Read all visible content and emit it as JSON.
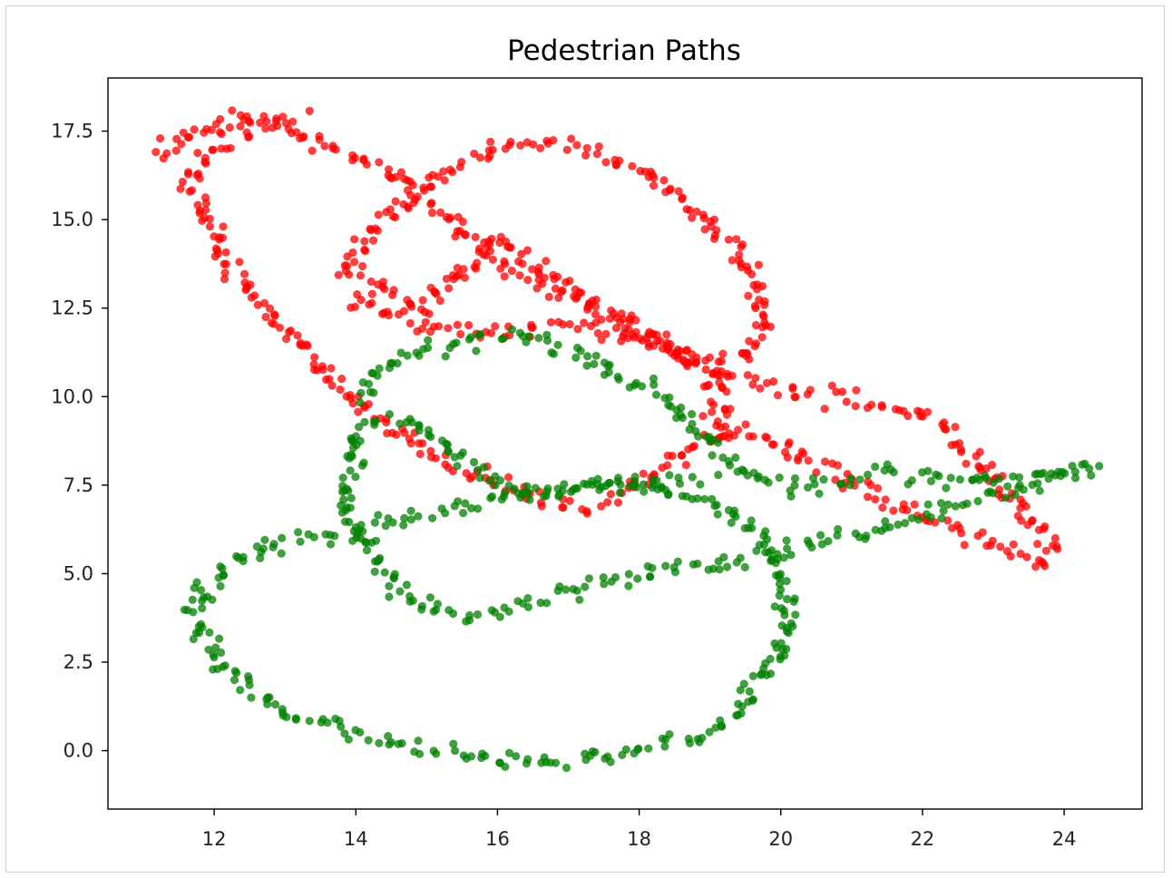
{
  "chart_data": {
    "type": "scatter",
    "title": "Pedestrian Paths",
    "xlabel": "",
    "ylabel": "",
    "xlim": [
      10.5,
      25.1
    ],
    "ylim": [
      -1.65,
      19.0
    ],
    "xticks": [
      12,
      14,
      16,
      18,
      20,
      22,
      24
    ],
    "yticks": [
      0.0,
      2.5,
      5.0,
      7.5,
      10.0,
      12.5,
      15.0,
      17.5
    ],
    "xtick_labels": [
      "12",
      "14",
      "16",
      "18",
      "20",
      "22",
      "24"
    ],
    "ytick_labels": [
      "0.0",
      "2.5",
      "5.0",
      "7.5",
      "10.0",
      "12.5",
      "15.0",
      "17.5"
    ],
    "grid": false,
    "series": [
      {
        "color": "#ff0000",
        "path": [
          [
            11.2,
            16.8
          ],
          [
            11.7,
            17.4
          ],
          [
            12.3,
            17.9
          ],
          [
            12.9,
            17.6
          ],
          [
            13.5,
            17.2
          ],
          [
            14.1,
            16.7
          ],
          [
            14.7,
            16.1
          ],
          [
            15.0,
            15.5
          ],
          [
            15.4,
            14.9
          ],
          [
            15.8,
            14.2
          ],
          [
            16.2,
            13.6
          ],
          [
            16.6,
            13.2
          ],
          [
            17.0,
            12.8
          ],
          [
            17.5,
            12.3
          ],
          [
            18.0,
            11.8
          ],
          [
            18.5,
            11.2
          ],
          [
            19.0,
            10.8
          ],
          [
            19.5,
            10.5
          ],
          [
            20.0,
            10.2
          ],
          [
            20.5,
            10.0
          ],
          [
            21.0,
            9.9
          ],
          [
            21.5,
            9.7
          ],
          [
            22.0,
            9.4
          ],
          [
            22.4,
            8.9
          ],
          [
            22.8,
            8.2
          ],
          [
            23.2,
            7.4
          ],
          [
            23.5,
            6.6
          ],
          [
            23.8,
            5.8
          ],
          [
            23.7,
            5.3
          ],
          [
            23.3,
            5.6
          ],
          [
            22.8,
            6.0
          ],
          [
            22.3,
            6.4
          ],
          [
            21.8,
            6.8
          ],
          [
            21.3,
            7.3
          ],
          [
            20.8,
            7.8
          ],
          [
            20.3,
            8.3
          ],
          [
            19.8,
            8.8
          ],
          [
            19.3,
            9.1
          ],
          [
            18.8,
            8.6
          ],
          [
            18.3,
            7.9
          ],
          [
            17.8,
            7.2
          ],
          [
            17.2,
            6.9
          ],
          [
            16.6,
            7.1
          ],
          [
            16.0,
            7.5
          ],
          [
            15.5,
            7.9
          ],
          [
            15.0,
            8.4
          ],
          [
            14.6,
            9.0
          ],
          [
            14.2,
            9.7
          ],
          [
            13.9,
            10.2
          ],
          [
            13.5,
            10.8
          ],
          [
            13.2,
            11.5
          ],
          [
            12.9,
            12.1
          ],
          [
            12.6,
            12.8
          ],
          [
            12.3,
            13.6
          ],
          [
            12.0,
            14.5
          ],
          [
            11.8,
            15.5
          ],
          [
            11.6,
            16.2
          ],
          [
            11.9,
            16.9
          ],
          [
            12.4,
            17.5
          ],
          [
            13.3,
            18.0
          ]
        ]
      },
      {
        "color": "#ff0000",
        "path": [
          [
            13.9,
            12.8
          ],
          [
            14.3,
            12.4
          ],
          [
            14.9,
            12.0
          ],
          [
            15.6,
            11.8
          ],
          [
            16.3,
            11.9
          ],
          [
            17.0,
            12.0
          ],
          [
            17.6,
            11.8
          ],
          [
            18.1,
            11.5
          ],
          [
            18.5,
            11.2
          ],
          [
            18.9,
            11.1
          ],
          [
            19.2,
            11.0
          ],
          [
            19.6,
            11.3
          ],
          [
            19.8,
            12.0
          ],
          [
            19.7,
            12.8
          ],
          [
            19.5,
            13.6
          ],
          [
            19.2,
            14.4
          ],
          [
            18.8,
            15.2
          ],
          [
            18.4,
            15.9
          ],
          [
            17.9,
            16.5
          ],
          [
            17.3,
            16.9
          ],
          [
            16.6,
            17.2
          ],
          [
            16.0,
            17.1
          ],
          [
            15.6,
            16.7
          ],
          [
            15.2,
            16.2
          ],
          [
            14.8,
            15.7
          ],
          [
            14.4,
            15.0
          ],
          [
            14.0,
            14.2
          ],
          [
            13.8,
            13.6
          ],
          [
            14.2,
            13.3
          ],
          [
            14.6,
            12.8
          ],
          [
            15.0,
            12.5
          ],
          [
            16.0,
            14.5
          ],
          [
            16.5,
            13.8
          ],
          [
            17.0,
            13.0
          ],
          [
            17.4,
            12.6
          ],
          [
            18.0,
            12.0
          ],
          [
            19.1,
            10.5
          ],
          [
            19.1,
            9.8
          ],
          [
            19.1,
            9.2
          ],
          [
            19.2,
            8.6
          ]
        ]
      },
      {
        "color": "#008000",
        "path": [
          [
            14.0,
            10.0
          ],
          [
            14.3,
            10.7
          ],
          [
            14.7,
            11.2
          ],
          [
            15.2,
            11.4
          ],
          [
            15.8,
            11.7
          ],
          [
            16.4,
            11.7
          ],
          [
            17.0,
            11.3
          ],
          [
            17.6,
            10.8
          ],
          [
            18.1,
            10.2
          ],
          [
            18.6,
            9.6
          ],
          [
            18.9,
            8.9
          ],
          [
            19.2,
            8.3
          ],
          [
            19.6,
            7.7
          ],
          [
            20.2,
            7.4
          ],
          [
            20.8,
            7.5
          ],
          [
            21.4,
            7.8
          ],
          [
            22.0,
            7.7
          ],
          [
            22.6,
            7.6
          ],
          [
            23.2,
            7.6
          ],
          [
            23.6,
            7.8
          ],
          [
            24.0,
            7.9
          ],
          [
            24.4,
            7.95
          ],
          [
            23.8,
            7.6
          ],
          [
            23.2,
            7.3
          ],
          [
            22.6,
            7.0
          ],
          [
            22.0,
            6.6
          ],
          [
            21.4,
            6.2
          ],
          [
            20.8,
            6.0
          ],
          [
            20.3,
            5.8
          ],
          [
            19.8,
            5.6
          ],
          [
            19.4,
            5.4
          ],
          [
            18.8,
            5.2
          ],
          [
            18.2,
            5.0
          ],
          [
            17.6,
            4.8
          ],
          [
            17.0,
            4.5
          ],
          [
            16.4,
            4.2
          ],
          [
            15.9,
            3.9
          ],
          [
            15.4,
            3.8
          ],
          [
            14.9,
            4.2
          ],
          [
            14.5,
            4.8
          ],
          [
            14.2,
            5.5
          ],
          [
            14.0,
            6.2
          ],
          [
            13.9,
            7.0
          ],
          [
            13.9,
            7.8
          ],
          [
            14.0,
            8.6
          ],
          [
            14.2,
            9.3
          ],
          [
            14.5,
            9.4
          ],
          [
            14.9,
            9.1
          ],
          [
            15.4,
            8.3
          ],
          [
            16.0,
            7.5
          ],
          [
            16.6,
            7.3
          ],
          [
            17.2,
            7.5
          ],
          [
            17.8,
            7.6
          ],
          [
            18.4,
            7.6
          ],
          [
            19.0,
            7.7
          ]
        ]
      },
      {
        "color": "#008000",
        "path": [
          [
            13.8,
            6.0
          ],
          [
            13.3,
            6.1
          ],
          [
            12.8,
            5.8
          ],
          [
            12.4,
            5.5
          ],
          [
            12.0,
            5.0
          ],
          [
            11.8,
            4.3
          ],
          [
            11.8,
            3.5
          ],
          [
            12.0,
            2.7
          ],
          [
            12.3,
            2.0
          ],
          [
            12.7,
            1.4
          ],
          [
            13.2,
            1.0
          ],
          [
            13.8,
            0.6
          ],
          [
            14.5,
            0.3
          ],
          [
            15.1,
            0.0
          ],
          [
            15.8,
            -0.2
          ],
          [
            16.4,
            -0.3
          ],
          [
            17.0,
            -0.3
          ],
          [
            17.6,
            -0.2
          ],
          [
            18.1,
            0.0
          ],
          [
            18.6,
            0.3
          ],
          [
            19.1,
            0.7
          ],
          [
            19.5,
            1.3
          ],
          [
            19.8,
            2.0
          ],
          [
            20.0,
            2.8
          ],
          [
            20.1,
            3.6
          ],
          [
            20.1,
            4.4
          ],
          [
            20.0,
            5.2
          ],
          [
            19.8,
            5.9
          ],
          [
            19.5,
            6.4
          ],
          [
            19.0,
            7.0
          ],
          [
            18.4,
            7.4
          ],
          [
            17.8,
            7.5
          ],
          [
            17.2,
            7.4
          ],
          [
            16.6,
            7.2
          ],
          [
            16.0,
            7.1
          ],
          [
            15.4,
            6.9
          ],
          [
            14.8,
            6.6
          ],
          [
            14.2,
            6.4
          ],
          [
            13.9,
            6.2
          ]
        ]
      }
    ]
  }
}
